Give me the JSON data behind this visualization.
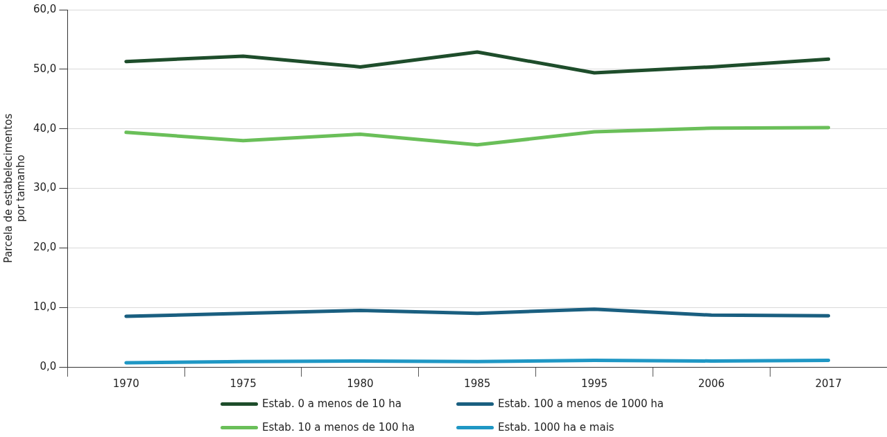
{
  "chart_data": {
    "type": "line",
    "ylabel": "Parcela de estabelecimentos\npor tamanho",
    "categories": [
      "1970",
      "1975",
      "1980",
      "1985",
      "1995",
      "2006",
      "2017"
    ],
    "ylim": [
      0,
      60
    ],
    "yticks": [
      {
        "value": 0,
        "label": "0,0"
      },
      {
        "value": 10,
        "label": "10,0"
      },
      {
        "value": 20,
        "label": "20,0"
      },
      {
        "value": 30,
        "label": "30,0"
      },
      {
        "value": 40,
        "label": "40,0"
      },
      {
        "value": 50,
        "label": "50,0"
      },
      {
        "value": 60,
        "label": "60,0"
      }
    ],
    "grid": "y",
    "legend": "bottom",
    "marker": "none",
    "line_style": "solid",
    "series": [
      {
        "name": "Estab. 0 a menos de 10 ha",
        "color": "#1e4d2b",
        "values": [
          51.3,
          52.2,
          50.4,
          52.9,
          49.4,
          50.4,
          51.7
        ]
      },
      {
        "name": "Estab. 10 a menos de 100 ha",
        "color": "#6abf59",
        "values": [
          39.4,
          38.0,
          39.1,
          37.3,
          39.5,
          40.1,
          40.2
        ]
      },
      {
        "name": "Estab. 100 a menos de 1000 ha",
        "color": "#1a5f80",
        "values": [
          8.5,
          9.0,
          9.5,
          9.0,
          9.7,
          8.7,
          8.6
        ]
      },
      {
        "name": "Estab. 1000 ha e mais",
        "color": "#1f97c4",
        "values": [
          0.7,
          0.9,
          1.0,
          0.9,
          1.1,
          1.0,
          1.1
        ]
      }
    ]
  }
}
